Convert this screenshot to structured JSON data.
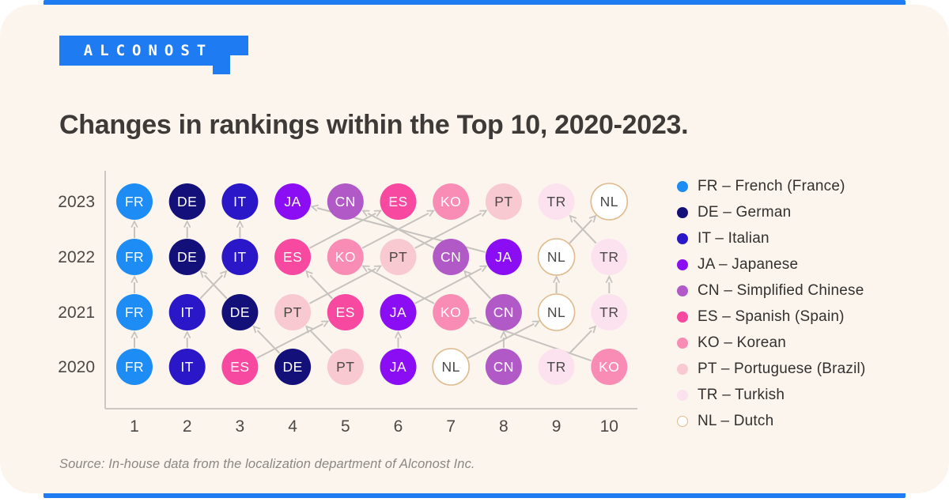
{
  "page": {
    "background_color": "#FFFFFF",
    "card_color": "#FCF5EE",
    "accent_color": "#1E7BF2"
  },
  "logo": {
    "text": "ALCONOST"
  },
  "title": "Changes in rankings within the Top 10, 2020-2023.",
  "source": "Source: In-house data from the localization department of Alconost Inc.",
  "chart_data": {
    "type": "bump",
    "title": "Changes in rankings within the Top 10, 2020-2023.",
    "xlabel": "",
    "ylabel": "",
    "x_tick_labels": [
      "1",
      "2",
      "3",
      "4",
      "5",
      "6",
      "7",
      "8",
      "9",
      "10"
    ],
    "y_tick_labels_top_to_bottom": [
      "2023",
      "2022",
      "2021",
      "2020"
    ],
    "rankings_by_year": {
      "2020": [
        "FR",
        "IT",
        "ES",
        "DE",
        "PT",
        "JA",
        "NL",
        "CN",
        "TR",
        "KO"
      ],
      "2021": [
        "FR",
        "IT",
        "DE",
        "PT",
        "ES",
        "JA",
        "KO",
        "CN",
        "NL",
        "TR"
      ],
      "2022": [
        "FR",
        "DE",
        "IT",
        "ES",
        "KO",
        "PT",
        "CN",
        "JA",
        "NL",
        "TR"
      ],
      "2023": [
        "FR",
        "DE",
        "IT",
        "JA",
        "CN",
        "ES",
        "KO",
        "PT",
        "TR",
        "NL"
      ]
    },
    "languages": [
      {
        "code": "FR",
        "name": "French (France)",
        "legend_label": "FR – French (France)",
        "color": "#1D8CF4",
        "text_color": "#FFFFFF"
      },
      {
        "code": "DE",
        "name": "German",
        "legend_label": "DE – German",
        "color": "#14107A",
        "text_color": "#FFFFFF"
      },
      {
        "code": "IT",
        "name": "Italian",
        "legend_label": "IT – Italian",
        "color": "#2A18C8",
        "text_color": "#FFFFFF"
      },
      {
        "code": "JA",
        "name": "Japanese",
        "legend_label": "JA – Japanese",
        "color": "#8B0DF3",
        "text_color": "#FFFFFF"
      },
      {
        "code": "CN",
        "name": "Simplified Chinese",
        "legend_label": "CN – Simplified Chinese",
        "color": "#B159C6",
        "text_color": "#FFFFFF"
      },
      {
        "code": "ES",
        "name": "Spanish (Spain)",
        "legend_label": "ES – Spanish (Spain)",
        "color": "#F6499F",
        "text_color": "#FFFFFF"
      },
      {
        "code": "KO",
        "name": "Korean",
        "legend_label": "KO – Korean",
        "color": "#F98CB5",
        "text_color": "#FFFFFF"
      },
      {
        "code": "PT",
        "name": "Portuguese (Brazil)",
        "legend_label": "PT – Portuguese (Brazil)",
        "color": "#F9C9D1",
        "text_color": "#4A4846"
      },
      {
        "code": "TR",
        "name": "Turkish",
        "legend_label": "TR – Turkish",
        "color": "#FBE2EE",
        "text_color": "#4A4846"
      },
      {
        "code": "NL",
        "name": "Dutch",
        "legend_label": "NL – Dutch",
        "color": "#FFFFFF",
        "text_color": "#4A4846",
        "border_color": "#E0BA8C"
      }
    ],
    "style": {
      "line_color": "#C6C2BE",
      "axis_color": "#CBC7C3",
      "tick_label_color": "#4B4846"
    },
    "legend_position": "right",
    "grid": false
  }
}
